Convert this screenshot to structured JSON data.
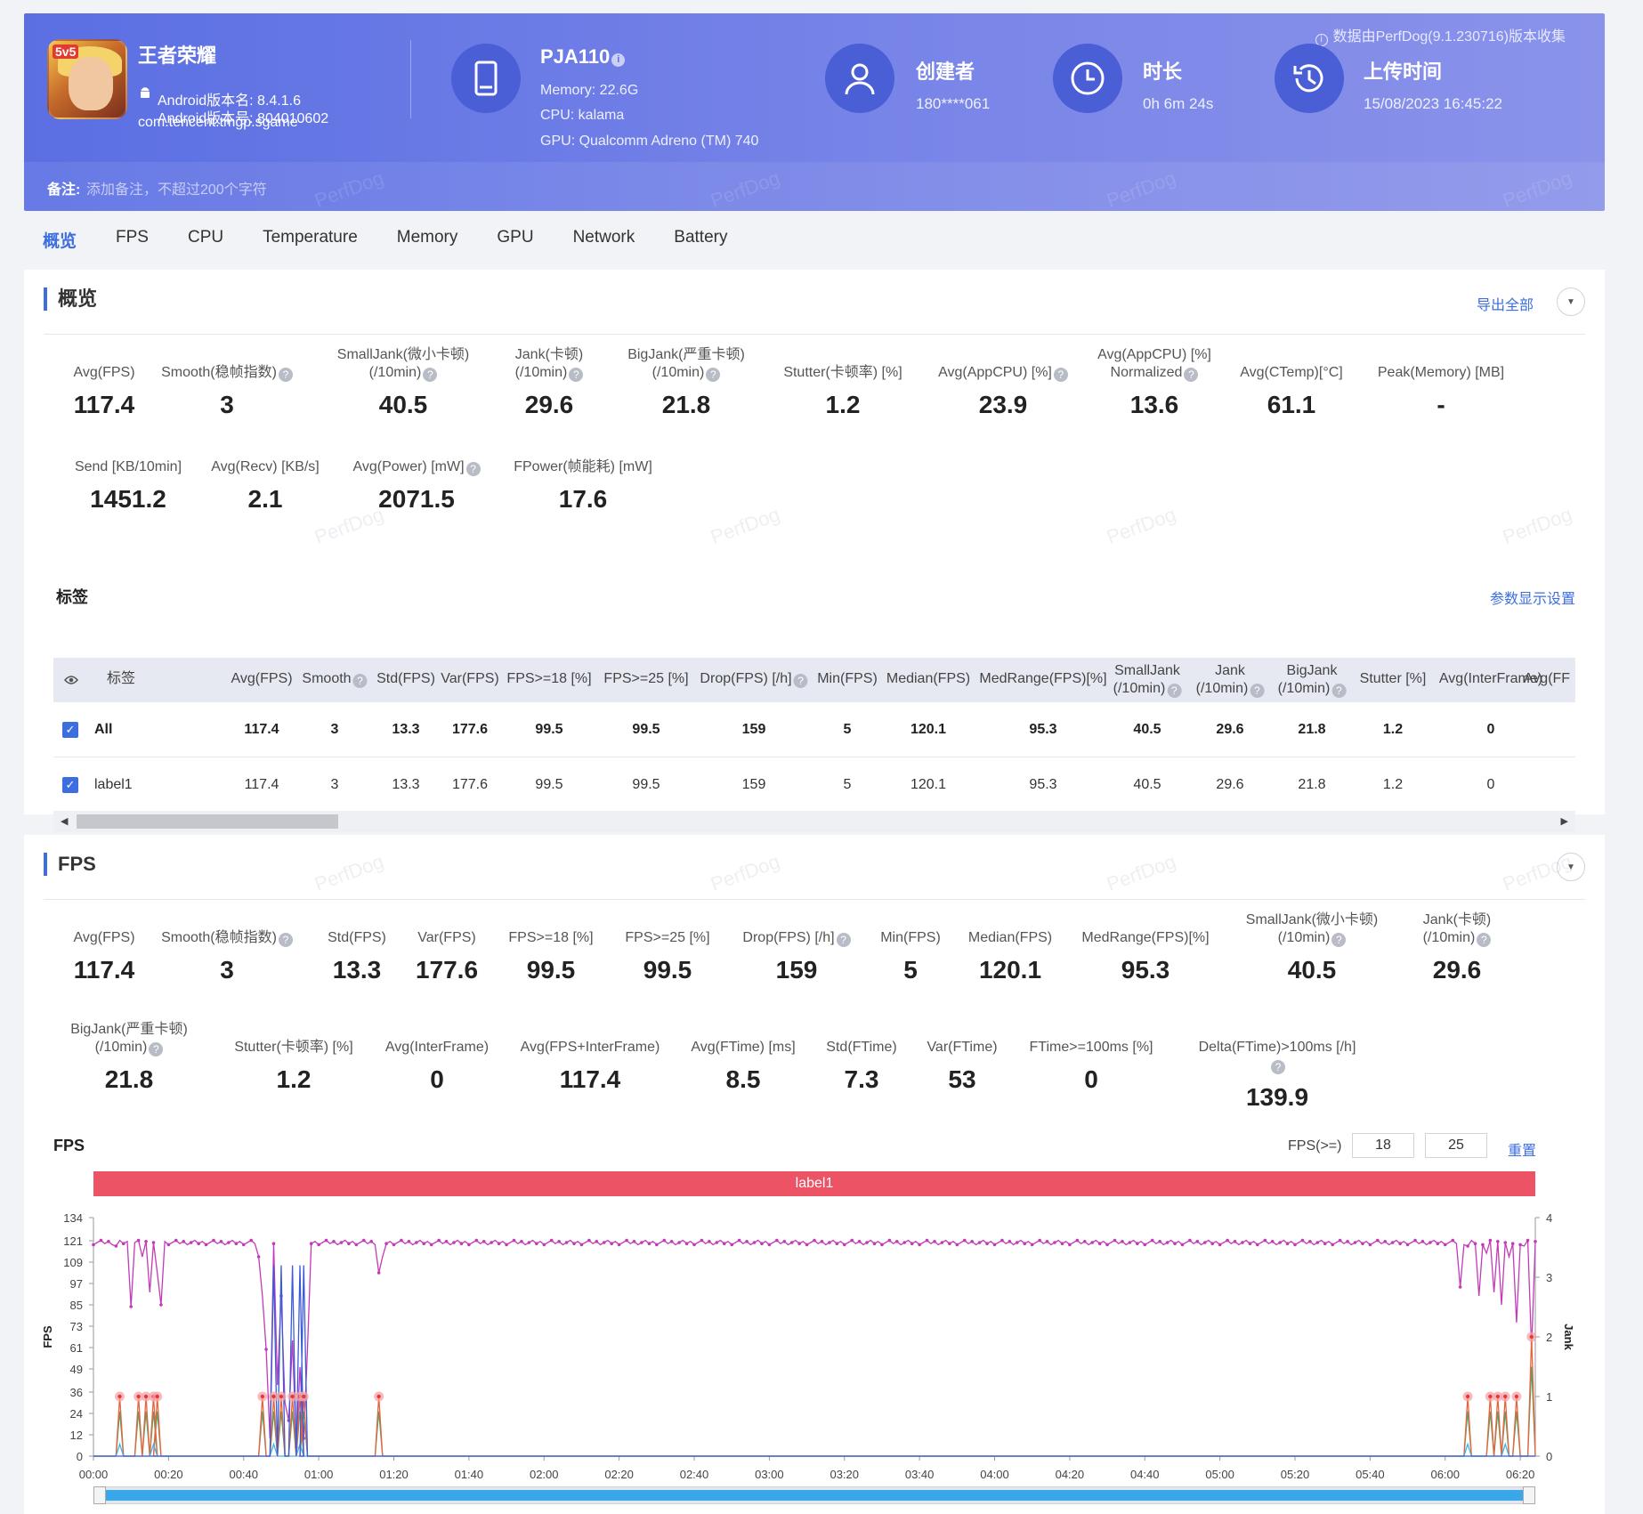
{
  "header": {
    "notice": "数据由PerfDog(9.1.230716)版本收集",
    "app": {
      "icon_text": "5v5",
      "name": "王者荣耀",
      "version_name": "Android版本名: 8.4.1.6",
      "version_code": "Android版本号: 804010602",
      "package": "com.tencent.tmgp.sgame"
    },
    "device": {
      "name": "PJA110",
      "memory": "Memory: 22.6G",
      "cpu": "CPU: kalama",
      "gpu": "GPU: Qualcomm Adreno (TM) 740"
    },
    "creator": {
      "title": "创建者",
      "value": "180****061"
    },
    "duration": {
      "title": "时长",
      "value": "0h 6m 24s"
    },
    "upload": {
      "title": "上传时间",
      "value": "15/08/2023 16:45:22"
    },
    "remark_label": "备注:",
    "remark_placeholder": "添加备注，不超过200个字符"
  },
  "watermark": "PerfDog",
  "tabs": [
    "概览",
    "FPS",
    "CPU",
    "Temperature",
    "Memory",
    "GPU",
    "Network",
    "Battery"
  ],
  "overview": {
    "title": "概览",
    "export_label": "导出全部",
    "stats_row1": [
      {
        "label": [
          "Avg(FPS)"
        ],
        "value": "117.4",
        "help": false
      },
      {
        "label": [
          "Smooth(稳帧指数)"
        ],
        "value": "3",
        "help": true
      },
      {
        "label": [
          "SmallJank(微小卡顿)",
          "(/10min)"
        ],
        "value": "40.5",
        "help": true
      },
      {
        "label": [
          "Jank(卡顿)",
          "(/10min)"
        ],
        "value": "29.6",
        "help": true
      },
      {
        "label": [
          "BigJank(严重卡顿)",
          "(/10min)"
        ],
        "value": "21.8",
        "help": true
      },
      {
        "label": [
          "Stutter(卡顿率) [%]"
        ],
        "value": "1.2",
        "help": false
      },
      {
        "label": [
          "Avg(AppCPU) [%]"
        ],
        "value": "23.9",
        "help": true
      },
      {
        "label": [
          "Avg(AppCPU) [%]",
          "Normalized"
        ],
        "value": "13.6",
        "help": true
      },
      {
        "label": [
          "Avg(CTemp)[°C]"
        ],
        "value": "61.1",
        "help": false
      },
      {
        "label": [
          "Peak(Memory) [MB]"
        ],
        "value": "-",
        "help": false
      }
    ],
    "stats_row2": [
      {
        "label": [
          "Send [KB/10min]"
        ],
        "value": "1451.2",
        "help": false
      },
      {
        "label": [
          "Avg(Recv) [KB/s]"
        ],
        "value": "2.1",
        "help": false
      },
      {
        "label": [
          "Avg(Power) [mW]"
        ],
        "value": "2071.5",
        "help": true
      },
      {
        "label": [
          "FPower(帧能耗) [mW]"
        ],
        "value": "17.6",
        "help": false
      }
    ],
    "labels_title": "标签",
    "display_settings": "参数显示设置",
    "table": {
      "columns": [
        {
          "label": [
            "标签"
          ]
        },
        {
          "label": [
            "Avg(FPS)"
          ]
        },
        {
          "label": [
            "Smooth"
          ],
          "help": true
        },
        {
          "label": [
            "Std(FPS)"
          ]
        },
        {
          "label": [
            "Var(FPS)"
          ]
        },
        {
          "label": [
            "FPS>=18 [%]"
          ]
        },
        {
          "label": [
            "FPS>=25 [%]"
          ]
        },
        {
          "label": [
            "Drop(FPS) [/h]"
          ],
          "help": true
        },
        {
          "label": [
            "Min(FPS)"
          ]
        },
        {
          "label": [
            "Median(FPS)"
          ]
        },
        {
          "label": [
            "MedRange(FPS)[%]"
          ]
        },
        {
          "label": [
            "SmallJank",
            "(/10min)"
          ],
          "help": true
        },
        {
          "label": [
            "Jank",
            "(/10min)"
          ],
          "help": true
        },
        {
          "label": [
            "BigJank",
            "(/10min)"
          ],
          "help": true
        },
        {
          "label": [
            "Stutter [%]"
          ]
        },
        {
          "label": [
            "Avg(InterFrame)"
          ]
        },
        {
          "label": [
            "Avg(FF"
          ]
        }
      ],
      "rows": [
        {
          "name": "All",
          "values": [
            "117.4",
            "3",
            "13.3",
            "177.6",
            "99.5",
            "99.5",
            "159",
            "5",
            "120.1",
            "95.3",
            "40.5",
            "29.6",
            "21.8",
            "1.2",
            "0"
          ]
        },
        {
          "name": "label1",
          "values": [
            "117.4",
            "3",
            "13.3",
            "177.6",
            "99.5",
            "99.5",
            "159",
            "5",
            "120.1",
            "95.3",
            "40.5",
            "29.6",
            "21.8",
            "1.2",
            "0"
          ]
        }
      ]
    }
  },
  "fps_section": {
    "title": "FPS",
    "stats_row1": [
      {
        "label": [
          "Avg(FPS)"
        ],
        "value": "117.4",
        "help": false
      },
      {
        "label": [
          "Smooth(稳帧指数)"
        ],
        "value": "3",
        "help": true
      },
      {
        "label": [
          "Std(FPS)"
        ],
        "value": "13.3",
        "help": false
      },
      {
        "label": [
          "Var(FPS)"
        ],
        "value": "177.6",
        "help": false
      },
      {
        "label": [
          "FPS>=18 [%]"
        ],
        "value": "99.5",
        "help": false
      },
      {
        "label": [
          "FPS>=25 [%]"
        ],
        "value": "99.5",
        "help": false
      },
      {
        "label": [
          "Drop(FPS) [/h]"
        ],
        "value": "159",
        "help": true
      },
      {
        "label": [
          "Min(FPS)"
        ],
        "value": "5",
        "help": false
      },
      {
        "label": [
          "Median(FPS)"
        ],
        "value": "120.1",
        "help": false
      },
      {
        "label": [
          "MedRange(FPS)[%]"
        ],
        "value": "95.3",
        "help": false
      },
      {
        "label": [
          "SmallJank(微小卡顿)",
          "(/10min)"
        ],
        "value": "40.5",
        "help": true
      },
      {
        "label": [
          "Jank(卡顿)",
          "(/10min)"
        ],
        "value": "29.6",
        "help": true
      }
    ],
    "stats_row2": [
      {
        "label": [
          "BigJank(严重卡顿)",
          "(/10min)"
        ],
        "value": "21.8",
        "help": true
      },
      {
        "label": [
          "Stutter(卡顿率) [%]"
        ],
        "value": "1.2",
        "help": false
      },
      {
        "label": [
          "Avg(InterFrame)"
        ],
        "value": "0",
        "help": false
      },
      {
        "label": [
          "Avg(FPS+InterFrame)"
        ],
        "value": "117.4",
        "help": false
      },
      {
        "label": [
          "Avg(FTime) [ms]"
        ],
        "value": "8.5",
        "help": false
      },
      {
        "label": [
          "Std(FTime)"
        ],
        "value": "7.3",
        "help": false
      },
      {
        "label": [
          "Var(FTime)"
        ],
        "value": "53",
        "help": false
      },
      {
        "label": [
          "FTime>=100ms [%]"
        ],
        "value": "0",
        "help": false
      },
      {
        "label": [
          "Delta(FTime)>100ms [/h]"
        ],
        "value": "139.9",
        "help": true
      }
    ],
    "chart_label": "FPS",
    "threshold_label": "FPS(>=)",
    "threshold_1": "18",
    "threshold_2": "25",
    "reset_label": "重置",
    "label_bar": "label1"
  },
  "chart_data": {
    "type": "line",
    "ylabel": "FPS",
    "y2label": "Jank",
    "y_ticks": [
      0,
      12,
      24,
      36,
      49,
      61,
      73,
      85,
      97,
      109,
      121,
      134
    ],
    "y2_ticks": [
      0,
      1,
      2,
      3,
      4
    ],
    "x_ticks": [
      "00:00",
      "00:20",
      "00:40",
      "01:00",
      "01:20",
      "01:40",
      "02:00",
      "02:20",
      "02:40",
      "03:00",
      "03:20",
      "03:40",
      "04:00",
      "04:20",
      "04:40",
      "05:00",
      "05:20",
      "05:40",
      "06:00",
      "06:20"
    ],
    "x_range_seconds": [
      0,
      384
    ],
    "colors": {
      "fps": "#c23ab8",
      "jank": "#e8643c",
      "bigjank": "#3b5bd6",
      "smalljank": "#4aa86a",
      "other": "#44b0e8"
    },
    "fps_baseline": 120,
    "fps_dips": [
      {
        "t": 6,
        "v": 118
      },
      {
        "t": 10,
        "v": 84
      },
      {
        "t": 13,
        "v": 112
      },
      {
        "t": 15,
        "v": 92
      },
      {
        "t": 17,
        "v": 103
      },
      {
        "t": 18,
        "v": 85
      },
      {
        "t": 44,
        "v": 112
      },
      {
        "t": 45,
        "v": 90
      },
      {
        "t": 46,
        "v": 60
      },
      {
        "t": 47,
        "v": 10
      },
      {
        "t": 49,
        "v": 40
      },
      {
        "t": 50,
        "v": 90
      },
      {
        "t": 51,
        "v": 30
      },
      {
        "t": 52,
        "v": 20
      },
      {
        "t": 53,
        "v": 65
      },
      {
        "t": 54,
        "v": 5
      },
      {
        "t": 55,
        "v": 50
      },
      {
        "t": 56,
        "v": 10
      },
      {
        "t": 57,
        "v": 60
      },
      {
        "t": 76,
        "v": 103
      },
      {
        "t": 77,
        "v": 112
      },
      {
        "t": 364,
        "v": 95
      },
      {
        "t": 366,
        "v": 118
      },
      {
        "t": 369,
        "v": 90
      },
      {
        "t": 371,
        "v": 114
      },
      {
        "t": 373,
        "v": 92
      },
      {
        "t": 375,
        "v": 85
      },
      {
        "t": 377,
        "v": 112
      },
      {
        "t": 379,
        "v": 75
      },
      {
        "t": 381,
        "v": 118
      },
      {
        "t": 383,
        "v": 60
      }
    ],
    "jank_events": [
      {
        "t": 7,
        "v": 1
      },
      {
        "t": 12,
        "v": 1
      },
      {
        "t": 14,
        "v": 1
      },
      {
        "t": 16,
        "v": 1
      },
      {
        "t": 17,
        "v": 1
      },
      {
        "t": 45,
        "v": 1
      },
      {
        "t": 48,
        "v": 1
      },
      {
        "t": 50,
        "v": 1
      },
      {
        "t": 53,
        "v": 1
      },
      {
        "t": 55,
        "v": 1
      },
      {
        "t": 56,
        "v": 1
      },
      {
        "t": 76,
        "v": 1
      },
      {
        "t": 366,
        "v": 1
      },
      {
        "t": 372,
        "v": 1
      },
      {
        "t": 374,
        "v": 1
      },
      {
        "t": 376,
        "v": 1
      },
      {
        "t": 379,
        "v": 1
      },
      {
        "t": 383,
        "v": 2
      }
    ]
  }
}
